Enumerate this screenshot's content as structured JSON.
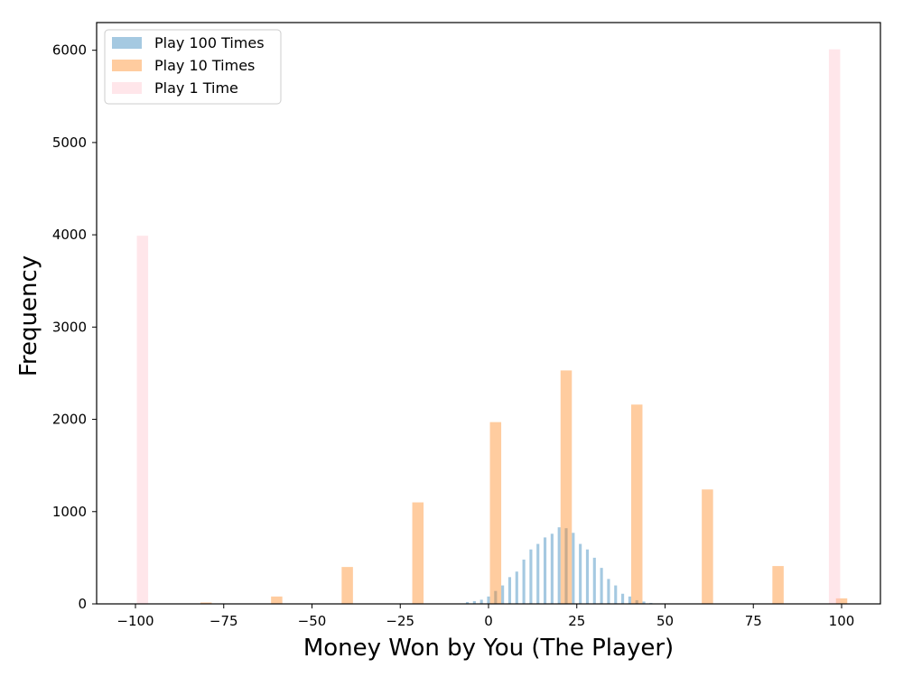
{
  "chart_data": {
    "type": "bar",
    "xlabel": "Money Won by You (The Player)",
    "ylabel": "Frequency",
    "xlim": [
      -111,
      111
    ],
    "ylim": [
      0,
      6300
    ],
    "xticks": [
      -100,
      -75,
      -50,
      -25,
      0,
      25,
      50,
      75,
      100
    ],
    "xtick_labels": [
      "−100",
      "−75",
      "−50",
      "−25",
      "0",
      "25",
      "50",
      "75",
      "100"
    ],
    "yticks": [
      0,
      1000,
      2000,
      3000,
      4000,
      5000,
      6000
    ],
    "ytick_labels": [
      "0",
      "1000",
      "2000",
      "3000",
      "4000",
      "5000",
      "6000"
    ],
    "legend_position": "top-left",
    "series": [
      {
        "name": "Play 100 Times",
        "color": "#1f77b4",
        "opacity": 0.4,
        "bin_width": 0.8,
        "x": [
          -6,
          -4,
          -2,
          0,
          2,
          4,
          6,
          8,
          10,
          12,
          14,
          16,
          18,
          20,
          22,
          24,
          26,
          28,
          30,
          32,
          34,
          36,
          38,
          40,
          42,
          44,
          46
        ],
        "values": [
          20,
          30,
          45,
          80,
          140,
          200,
          290,
          350,
          480,
          590,
          650,
          720,
          760,
          830,
          820,
          770,
          650,
          590,
          500,
          390,
          270,
          200,
          110,
          80,
          40,
          25,
          10
        ]
      },
      {
        "name": "Play 10 Times",
        "color": "#ff7f0e",
        "opacity": 0.4,
        "bin_width": 3.2,
        "x": [
          -80,
          -60,
          -40,
          -20,
          2,
          22,
          42,
          62,
          82,
          100
        ],
        "values": [
          15,
          80,
          400,
          1100,
          1970,
          2530,
          2160,
          1240,
          410,
          60
        ]
      },
      {
        "name": "Play 1 Time",
        "color": "#ffc0cb",
        "opacity": 0.4,
        "bin_width": 3.2,
        "x": [
          -98,
          98
        ],
        "values": [
          3990,
          6010
        ]
      }
    ]
  }
}
